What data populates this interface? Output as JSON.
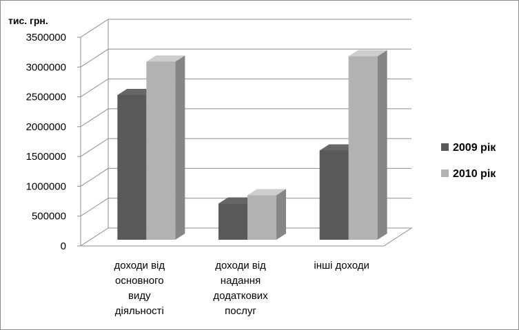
{
  "chart_data": {
    "type": "bar",
    "unit_label": "тис. грн.",
    "categories": [
      [
        "доходи від",
        "основного",
        "виду",
        "діяльності"
      ],
      [
        "доходи від",
        "надання",
        "додаткових",
        "послуг"
      ],
      [
        "інші доходи"
      ]
    ],
    "series": [
      {
        "name": "2009 рік",
        "values": [
          2530000,
          710000,
          1600000
        ],
        "color": "#595959"
      },
      {
        "name": "2010 рік",
        "values": [
          3090000,
          850000,
          3180000
        ],
        "color": "#b2b2b2"
      }
    ],
    "yticks": [
      "0",
      "500000",
      "1000000",
      "1500000",
      "2000000",
      "2500000",
      "3000000",
      "3500000"
    ],
    "ylim": [
      0,
      3500000
    ],
    "grid": true,
    "legend_position": "right"
  }
}
